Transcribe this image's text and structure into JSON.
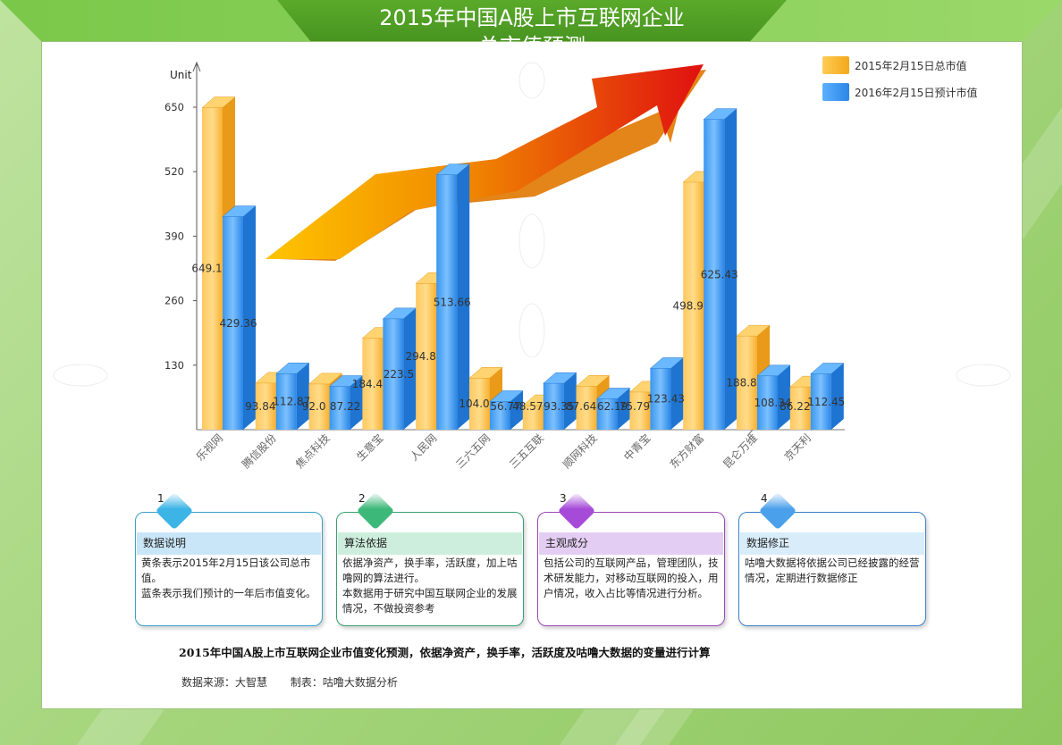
{
  "title": {
    "line1": "2015年中国A股上市互联网企业",
    "line2": "总市值预测"
  },
  "legend": [
    {
      "label": "2015年2月15日总市值",
      "color": "#f8b42a"
    },
    {
      "label": "2016年2月15日预计市值",
      "color": "#3d9ef0"
    }
  ],
  "chart_data": {
    "type": "bar",
    "ylabel": "Unit",
    "ylim": [
      0,
      650
    ],
    "yticks": [
      130,
      260,
      390,
      520,
      650
    ],
    "grid": false,
    "legend_position": "top-right",
    "categories": [
      "乐视网",
      "腾信股份",
      "焦点科技",
      "生意宝",
      "人民网",
      "三六五网",
      "三五互联",
      "顺网科技",
      "中青宝",
      "东方财富",
      "昆仑万维",
      "京天利"
    ],
    "series": [
      {
        "name": "2015年2月15日总市值",
        "color": "#f8b42a",
        "values": [
          649.1,
          93.84,
          92.0,
          184.4,
          294.8,
          104.0,
          48.57,
          87.64,
          75.79,
          498.9,
          188.8,
          86.22
        ],
        "labels": [
          "649.1",
          "93.84",
          "92.0",
          "184.4",
          "294.8",
          "104.0",
          "48.57",
          "87.64",
          "75.79",
          "498.9",
          "188.8",
          "86.22"
        ]
      },
      {
        "name": "2016年2月15日预计市值",
        "color": "#3d9ef0",
        "values": [
          429.36,
          112.87,
          87.22,
          223.5,
          513.66,
          56.77,
          93.35,
          62.19,
          123.43,
          625.43,
          108.34,
          112.45
        ],
        "labels": [
          "429.36",
          "112.87",
          "87.22",
          "223.5",
          "513.66",
          "56.77",
          "93.35",
          "62.19",
          "123.43",
          "625.43",
          "108.34",
          "112.45"
        ]
      }
    ]
  },
  "cards": [
    {
      "number": "1",
      "heading": "数据说明",
      "body": "黄条表示2015年2月15日该公司总市值。\n蓝条表示我们预计的一年后市值变化。",
      "border": "#3aa0c8",
      "head_bg": "#c9e6f8",
      "diamond": "#3cb4e6"
    },
    {
      "number": "2",
      "heading": "算法依据",
      "body": "依据净资产，换手率，活跃度，加上咕噜网的算法进行。\n本数据用于研究中国互联网企业的发展情况，不做投资参考",
      "border": "#3aa070",
      "head_bg": "#cdeedc",
      "diamond": "#3cb878"
    },
    {
      "number": "3",
      "heading": "主观成分",
      "body": "包括公司的互联网产品，管理团队，技术研发能力，对移动互联网的投入，用户情况，收入占比等情况进行分析。",
      "border": "#9a4ab8",
      "head_bg": "#e4cdf3",
      "diamond": "#a64ad8"
    },
    {
      "number": "4",
      "heading": "数据修正",
      "body": "咕噜大数据将依据公司已经披露的经营情况，定期进行数据修正",
      "border": "#3a82c8",
      "head_bg": "#d8ecfa",
      "diamond": "#4aa0ea"
    }
  ],
  "footnote": "2015年中国A股上市互联网企业市值变化预测，依据净资产，换手率，活跃度及咕噜大数据的变量进行计算",
  "source": {
    "data_source": "数据来源：大智慧",
    "made_by": "制表：咕噜大数据分析"
  }
}
